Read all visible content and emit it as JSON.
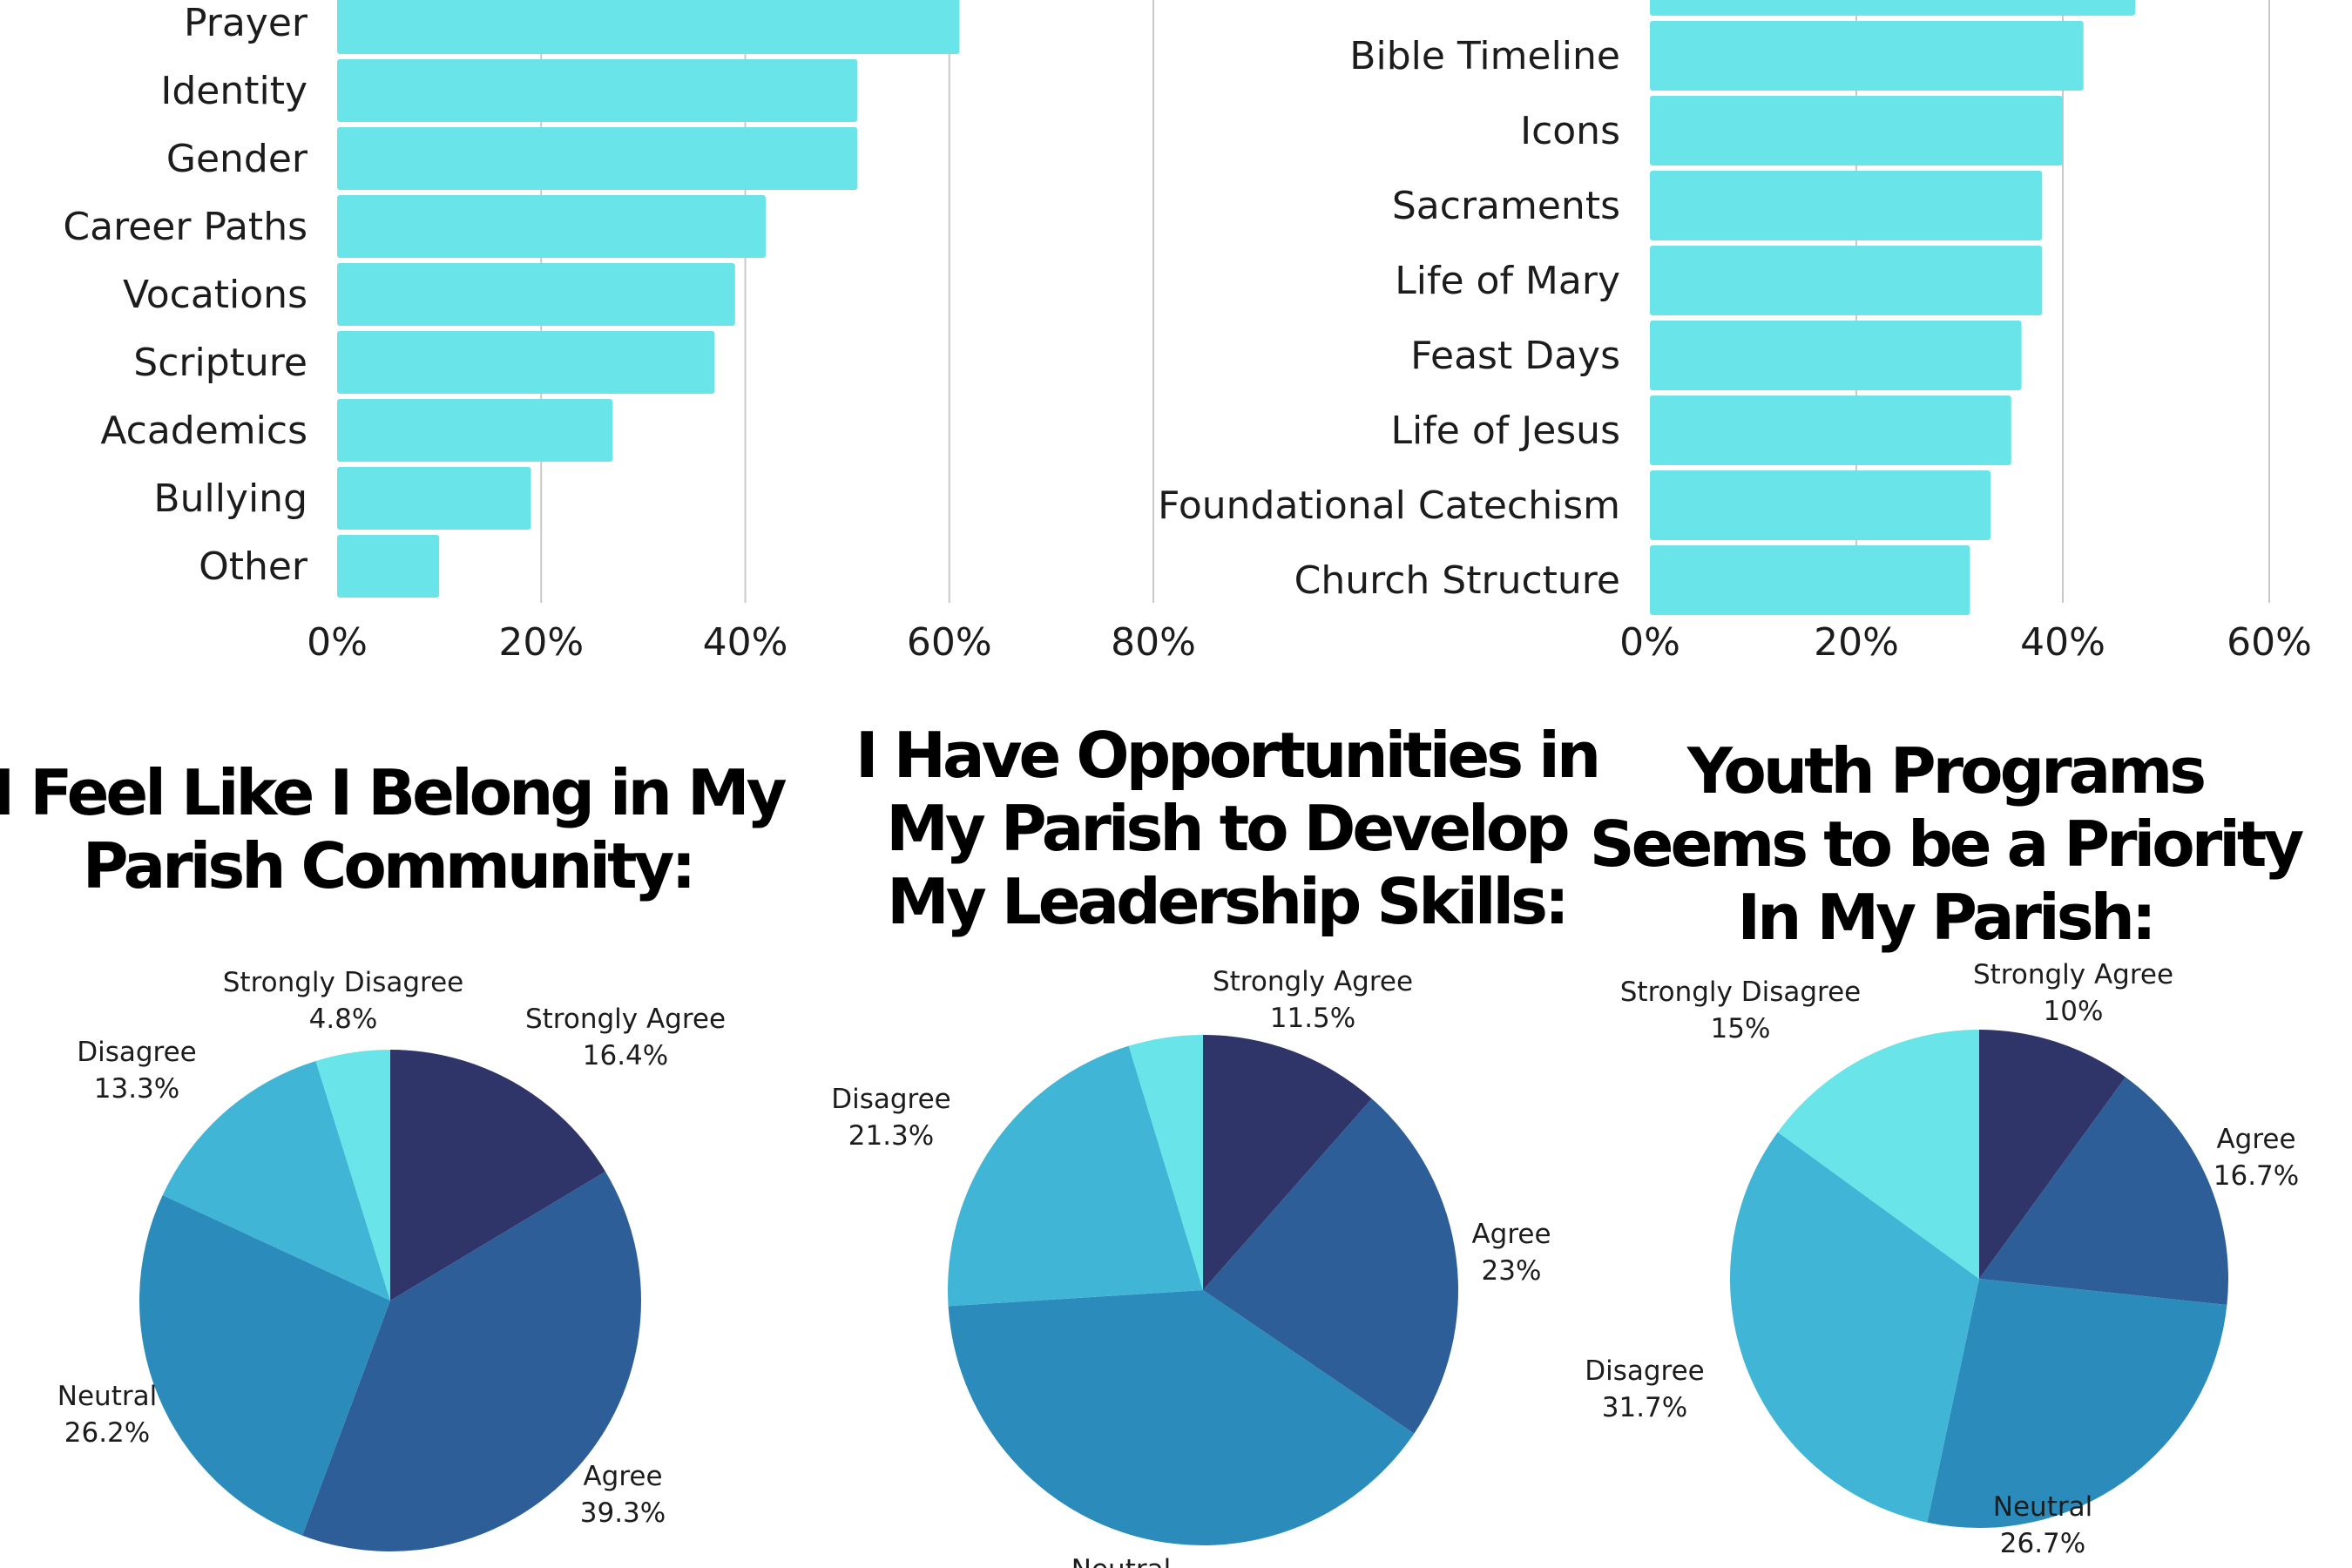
{
  "colors": {
    "bar": "#69e4e8",
    "grid": "#c9c9c9",
    "text": "#1c1c1c",
    "title": "#000000",
    "strongly_agree": "#2f3469",
    "agree": "#2e5e97",
    "neutral": "#2b8bbb",
    "disagree": "#41b5d6",
    "strongly_disagree": "#69e4e8"
  },
  "chart_data": [
    {
      "id": "left-bar",
      "type": "bar",
      "orientation": "horizontal",
      "title": "",
      "xlabel": "",
      "ylabel": "",
      "categories": [
        "Prayer",
        "Identity",
        "Gender",
        "Career Paths",
        "Vocations",
        "Scripture",
        "Academics",
        "Bullying",
        "Other"
      ],
      "values": [
        61,
        51,
        51,
        42,
        39,
        37,
        27,
        19,
        10
      ],
      "xlim": [
        0,
        80
      ],
      "ticks": [
        0,
        20,
        40,
        60,
        80
      ],
      "tick_labels": [
        "0%",
        "20%",
        "40%",
        "60%",
        "80%"
      ],
      "grid": true,
      "note": "top of chart partially cut off"
    },
    {
      "id": "right-bar",
      "type": "bar",
      "orientation": "horizontal",
      "title": "",
      "xlabel": "",
      "ylabel": "",
      "categories": [
        "",
        "Bible Timeline",
        "Icons",
        "Sacraments",
        "Life of Mary",
        "Feast Days",
        "Life of Jesus",
        "Foundational Catechism",
        "Church Structure"
      ],
      "values": [
        47,
        42,
        40,
        38,
        38,
        36,
        35,
        33,
        31
      ],
      "xlim": [
        0,
        60
      ],
      "ticks": [
        0,
        20,
        40,
        60
      ],
      "tick_labels": [
        "0%",
        "20%",
        "40%",
        "60%"
      ],
      "grid": true
    },
    {
      "id": "pie-belong",
      "type": "pie",
      "title_lines": [
        "I Feel Like I Belong in My",
        "Parish Community:"
      ],
      "slices": [
        {
          "key": "strongly_agree",
          "label": "Strongly Agree",
          "value": 16.4,
          "value_label": "16.4%"
        },
        {
          "key": "agree",
          "label": "Agree",
          "value": 39.3,
          "value_label": "39.3%"
        },
        {
          "key": "neutral",
          "label": "Neutral",
          "value": 26.2,
          "value_label": "26.2%"
        },
        {
          "key": "disagree",
          "label": "Disagree",
          "value": 13.3,
          "value_label": "13.3%"
        },
        {
          "key": "strongly_disagree",
          "label": "Strongly Disagree",
          "value": 4.8,
          "value_label": "4.8%"
        }
      ]
    },
    {
      "id": "pie-leadership",
      "type": "pie",
      "title_lines": [
        "I Have Opportunities in",
        "My Parish to Develop",
        "My Leadership Skills:"
      ],
      "slices": [
        {
          "key": "strongly_agree",
          "label": "Strongly Agree",
          "value": 11.5,
          "value_label": "11.5%"
        },
        {
          "key": "agree",
          "label": "Agree",
          "value": 23,
          "value_label": "23%"
        },
        {
          "key": "neutral",
          "label": "Neutral",
          "value": 39.5,
          "value_label": ""
        },
        {
          "key": "disagree",
          "label": "Disagree",
          "value": 21.3,
          "value_label": "21.3%"
        },
        {
          "key": "strongly_disagree",
          "label": "",
          "value": 4.7,
          "value_label": ""
        }
      ]
    },
    {
      "id": "pie-youth",
      "type": "pie",
      "title_lines": [
        "Youth Programs",
        "Seems to be a Priority",
        "In My Parish:"
      ],
      "slices": [
        {
          "key": "strongly_agree",
          "label": "Strongly Agree",
          "value": 10,
          "value_label": "10%"
        },
        {
          "key": "agree",
          "label": "Agree",
          "value": 16.7,
          "value_label": "16.7%"
        },
        {
          "key": "neutral",
          "label": "Neutral",
          "value": 26.7,
          "value_label": "26.7%"
        },
        {
          "key": "disagree",
          "label": "Disagree",
          "value": 31.7,
          "value_label": "31.7%"
        },
        {
          "key": "strongly_disagree",
          "label": "Strongly Disagree",
          "value": 15,
          "value_label": "15%"
        }
      ]
    }
  ]
}
